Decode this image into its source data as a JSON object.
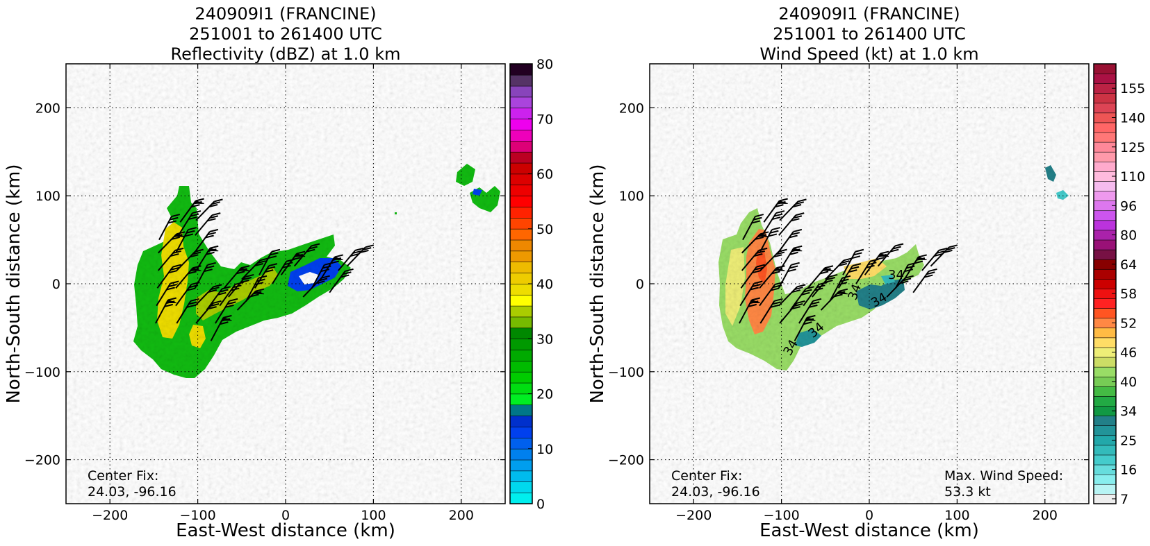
{
  "figure": {
    "panels": [
      {
        "title_lines": [
          "240909I1 (FRANCINE)",
          "251001 to 261400 UTC",
          "Reflectivity (dBZ) at 1.0 km"
        ],
        "xlabel": "East-West distance (km)",
        "ylabel": "North-South distance (km)",
        "center_fix_label": "Center Fix:",
        "center_fix_value": "24.03, -96.16",
        "max_label": "",
        "max_value": ""
      },
      {
        "title_lines": [
          "240909I1 (FRANCINE)",
          "251001 to 261400 UTC",
          "Wind Speed (kt) at 1.0 km"
        ],
        "xlabel": "East-West distance (km)",
        "ylabel": "North-South distance (km)",
        "center_fix_label": "Center Fix:",
        "center_fix_value": "24.03, -96.16",
        "max_label": "Max. Wind Speed:",
        "max_value": "53.3 kt"
      }
    ]
  },
  "chart_data": [
    {
      "type": "heatmap",
      "field": "reflectivity_dBZ",
      "title": "240909I1 (FRANCINE) / 251001 to 261400 UTC / Reflectivity (dBZ) at 1.0 km",
      "xlabel": "East-West distance (km)",
      "ylabel": "North-South distance (km)",
      "xlim": [
        -250,
        250
      ],
      "ylim": [
        -250,
        250
      ],
      "xticks": [
        -200,
        -100,
        0,
        100,
        200
      ],
      "yticks": [
        -200,
        -100,
        0,
        100,
        200
      ],
      "grid": true,
      "colorbar": {
        "min": 0,
        "max": 80,
        "tick_values": [
          0,
          10,
          20,
          30,
          40,
          50,
          60,
          70,
          80
        ],
        "tick_labels": [
          "0",
          "10",
          "20",
          "30",
          "40",
          "50",
          "60",
          "70",
          "80"
        ],
        "colors": [
          "#00eeee",
          "#00d8ee",
          "#00bbee",
          "#009eee",
          "#0080ee",
          "#0060ee",
          "#0040ee",
          "#0030cc",
          "#007788",
          "#00ee22",
          "#00dd11",
          "#00cc00",
          "#00bb00",
          "#00aa00",
          "#009900",
          "#008800",
          "#77bb00",
          "#aacc00",
          "#ffff00",
          "#eedd00",
          "#eecc00",
          "#eebb00",
          "#ee9900",
          "#ee8800",
          "#ff6600",
          "#ff4400",
          "#ff2200",
          "#ff0000",
          "#ee0000",
          "#dd0000",
          "#cc0000",
          "#bb0022",
          "#dd0077",
          "#ee00bb",
          "#ee00ee",
          "#cc22ee",
          "#aa44dd",
          "#8844bb",
          "#553366",
          "#220022"
        ]
      },
      "center_fix": [
        24.03,
        -96.16
      ]
    },
    {
      "type": "heatmap",
      "field": "wind_speed_kt",
      "title": "240909I1 (FRANCINE) / 251001 to 261400 UTC / Wind Speed (kt) at 1.0 km",
      "xlabel": "East-West distance (km)",
      "ylabel": "North-South distance (km)",
      "xlim": [
        -250,
        250
      ],
      "ylim": [
        -250,
        250
      ],
      "xticks": [
        -200,
        -100,
        0,
        100,
        200
      ],
      "yticks": [
        -200,
        -100,
        0,
        100,
        200
      ],
      "grid": true,
      "contour_labels": [
        "34",
        "34",
        "34",
        "34",
        "34",
        "34"
      ],
      "colorbar": {
        "tick_labels": [
          "7",
          "16",
          "25",
          "34",
          "40",
          "46",
          "52",
          "58",
          "64",
          "80",
          "96",
          "110",
          "125",
          "140",
          "155"
        ],
        "colors": [
          "#eeeeee",
          "#b8f4f4",
          "#88eeee",
          "#66dddd",
          "#44cccc",
          "#33bbbb",
          "#22a8aa",
          "#229499",
          "#228088",
          "#119944",
          "#22aa44",
          "#44bb44",
          "#77cc55",
          "#99dd66",
          "#ccdd66",
          "#eeee77",
          "#ffdd66",
          "#ffbb44",
          "#ff8844",
          "#ff5522",
          "#ff2222",
          "#ee1111",
          "#cc0000",
          "#aa0000",
          "#880000",
          "#771144",
          "#991177",
          "#aa22aa",
          "#bb33dd",
          "#cc55ee",
          "#dd77ee",
          "#ee99ee",
          "#f5bbee",
          "#ffbbdd",
          "#ffaacc",
          "#ff99aa",
          "#ff8899",
          "#ff7777",
          "#ff6666",
          "#ee5555",
          "#dd4455",
          "#cc3344",
          "#bb2244",
          "#aa1144",
          "#991133"
        ]
      },
      "max_wind_speed": "53.3 kt",
      "center_fix": [
        24.03,
        -96.16
      ]
    }
  ]
}
